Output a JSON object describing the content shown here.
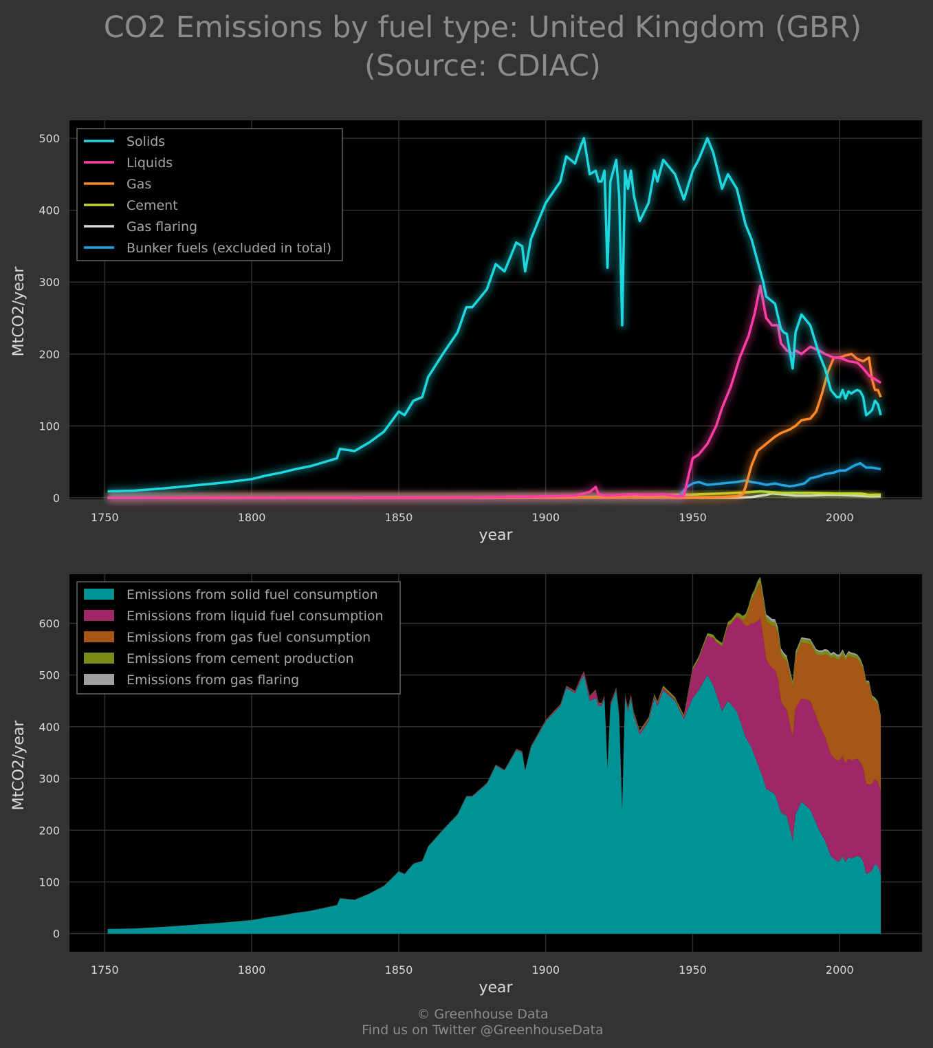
{
  "title": {
    "line1": "CO2 Emissions by fuel type: United Kingdom (GBR)",
    "line2": "(Source: CDIAC)"
  },
  "footer": {
    "line1": "© Greenhouse Data",
    "line2": "Find us on Twitter @GreenhouseData"
  },
  "colors": {
    "background": "#333333",
    "plot_bg": "#000000",
    "solids": "#1ed8e0",
    "liquids": "#ff3ea5",
    "gas": "#ff8a2a",
    "cement": "#c2d62a",
    "flaring": "#d9d9d9",
    "bunker": "#23a3e0",
    "area_solid": "#009294",
    "area_liquid": "#a02767",
    "area_gas": "#a65615",
    "area_cement": "#7c8a1a",
    "area_flaring": "#a0a0a0"
  },
  "chart_data": [
    {
      "type": "line",
      "xlabel": "year",
      "ylabel": "MtCO2/year",
      "xlim": [
        1738,
        2028
      ],
      "ylim": [
        -2,
        525
      ],
      "xticks": [
        1750,
        1800,
        1850,
        1900,
        1950,
        2000
      ],
      "yticks": [
        0,
        100,
        200,
        300,
        400,
        500
      ],
      "grid": true,
      "legend_position": "top-left",
      "series": [
        {
          "name": "Solids",
          "color_key": "solids",
          "points": [
            [
              1751,
              9
            ],
            [
              1760,
              10
            ],
            [
              1770,
              13
            ],
            [
              1780,
              17
            ],
            [
              1790,
              21
            ],
            [
              1800,
              26
            ],
            [
              1805,
              31
            ],
            [
              1810,
              35
            ],
            [
              1815,
              40
            ],
            [
              1820,
              44
            ],
            [
              1825,
              50
            ],
            [
              1829,
              55
            ],
            [
              1830,
              68
            ],
            [
              1835,
              65
            ],
            [
              1840,
              77
            ],
            [
              1845,
              92
            ],
            [
              1850,
              120
            ],
            [
              1852,
              115
            ],
            [
              1855,
              135
            ],
            [
              1858,
              140
            ],
            [
              1860,
              168
            ],
            [
              1865,
              200
            ],
            [
              1870,
              230
            ],
            [
              1873,
              265
            ],
            [
              1875,
              265
            ],
            [
              1880,
              290
            ],
            [
              1883,
              325
            ],
            [
              1886,
              315
            ],
            [
              1890,
              355
            ],
            [
              1892,
              350
            ],
            [
              1893,
              315
            ],
            [
              1895,
              360
            ],
            [
              1900,
              410
            ],
            [
              1905,
              440
            ],
            [
              1907,
              475
            ],
            [
              1910,
              465
            ],
            [
              1912,
              490
            ],
            [
              1913,
              500
            ],
            [
              1914,
              475
            ],
            [
              1915,
              450
            ],
            [
              1917,
              455
            ],
            [
              1918,
              440
            ],
            [
              1919,
              440
            ],
            [
              1920,
              455
            ],
            [
              1921,
              320
            ],
            [
              1922,
              440
            ],
            [
              1924,
              470
            ],
            [
              1925,
              420
            ],
            [
              1926,
              240
            ],
            [
              1927,
              455
            ],
            [
              1928,
              430
            ],
            [
              1929,
              455
            ],
            [
              1930,
              420
            ],
            [
              1932,
              385
            ],
            [
              1935,
              410
            ],
            [
              1937,
              455
            ],
            [
              1938,
              440
            ],
            [
              1940,
              470
            ],
            [
              1944,
              450
            ],
            [
              1947,
              415
            ],
            [
              1950,
              455
            ],
            [
              1952,
              470
            ],
            [
              1955,
              500
            ],
            [
              1957,
              480
            ],
            [
              1960,
              430
            ],
            [
              1962,
              450
            ],
            [
              1965,
              430
            ],
            [
              1968,
              380
            ],
            [
              1970,
              360
            ],
            [
              1972,
              330
            ],
            [
              1974,
              300
            ],
            [
              1975,
              280
            ],
            [
              1978,
              270
            ],
            [
              1980,
              235
            ],
            [
              1981,
              230
            ],
            [
              1982,
              228
            ],
            [
              1984,
              180
            ],
            [
              1985,
              230
            ],
            [
              1987,
              255
            ],
            [
              1990,
              240
            ],
            [
              1993,
              200
            ],
            [
              1995,
              180
            ],
            [
              1997,
              150
            ],
            [
              1999,
              140
            ],
            [
              2000,
              140
            ],
            [
              2001,
              150
            ],
            [
              2002,
              138
            ],
            [
              2003,
              148
            ],
            [
              2004,
              145
            ],
            [
              2005,
              148
            ],
            [
              2006,
              150
            ],
            [
              2007,
              148
            ],
            [
              2008,
              140
            ],
            [
              2009,
              115
            ],
            [
              2010,
              118
            ],
            [
              2011,
              122
            ],
            [
              2012,
              135
            ],
            [
              2013,
              130
            ],
            [
              2014,
              115
            ]
          ]
        },
        {
          "name": "Liquids",
          "color_key": "liquids",
          "points": [
            [
              1751,
              0
            ],
            [
              1870,
              0.5
            ],
            [
              1900,
              2
            ],
            [
              1910,
              3
            ],
            [
              1915,
              8
            ],
            [
              1917,
              15
            ],
            [
              1918,
              5
            ],
            [
              1920,
              3
            ],
            [
              1925,
              4
            ],
            [
              1930,
              5
            ],
            [
              1935,
              4
            ],
            [
              1940,
              5
            ],
            [
              1945,
              2
            ],
            [
              1947,
              3
            ],
            [
              1950,
              55
            ],
            [
              1952,
              60
            ],
            [
              1955,
              75
            ],
            [
              1958,
              100
            ],
            [
              1960,
              125
            ],
            [
              1963,
              155
            ],
            [
              1966,
              195
            ],
            [
              1969,
              225
            ],
            [
              1971,
              255
            ],
            [
              1973,
              295
            ],
            [
              1975,
              250
            ],
            [
              1977,
              240
            ],
            [
              1979,
              240
            ],
            [
              1980,
              215
            ],
            [
              1982,
              205
            ],
            [
              1984,
              200
            ],
            [
              1985,
              205
            ],
            [
              1987,
              200
            ],
            [
              1990,
              210
            ],
            [
              1993,
              205
            ],
            [
              1995,
              200
            ],
            [
              1998,
              195
            ],
            [
              2000,
              195
            ],
            [
              2003,
              190
            ],
            [
              2006,
              188
            ],
            [
              2008,
              180
            ],
            [
              2010,
              170
            ],
            [
              2012,
              165
            ],
            [
              2014,
              160
            ]
          ]
        },
        {
          "name": "Gas",
          "color_key": "gas",
          "points": [
            [
              1751,
              0
            ],
            [
              1950,
              0.5
            ],
            [
              1960,
              1
            ],
            [
              1965,
              2
            ],
            [
              1967,
              5
            ],
            [
              1968,
              15
            ],
            [
              1970,
              45
            ],
            [
              1972,
              65
            ],
            [
              1975,
              75
            ],
            [
              1978,
              85
            ],
            [
              1980,
              90
            ],
            [
              1983,
              95
            ],
            [
              1985,
              100
            ],
            [
              1987,
              108
            ],
            [
              1990,
              110
            ],
            [
              1992,
              120
            ],
            [
              1994,
              145
            ],
            [
              1996,
              175
            ],
            [
              1998,
              195
            ],
            [
              2000,
              195
            ],
            [
              2002,
              198
            ],
            [
              2004,
              200
            ],
            [
              2006,
              193
            ],
            [
              2008,
              190
            ],
            [
              2010,
              195
            ],
            [
              2011,
              165
            ],
            [
              2012,
              150
            ],
            [
              2013,
              150
            ],
            [
              2014,
              140
            ]
          ]
        },
        {
          "name": "Cement",
          "color_key": "cement",
          "points": [
            [
              1751,
              0
            ],
            [
              1870,
              0.2
            ],
            [
              1900,
              0.8
            ],
            [
              1920,
              1.5
            ],
            [
              1930,
              2.5
            ],
            [
              1940,
              4
            ],
            [
              1950,
              4.5
            ],
            [
              1960,
              6
            ],
            [
              1970,
              8
            ],
            [
              1973,
              9
            ],
            [
              1980,
              7
            ],
            [
              1990,
              7
            ],
            [
              2000,
              6
            ],
            [
              2007,
              6
            ],
            [
              2010,
              4
            ],
            [
              2014,
              4.5
            ]
          ]
        },
        {
          "name": "Gas flaring",
          "color_key": "flaring",
          "points": [
            [
              1751,
              0
            ],
            [
              1965,
              0
            ],
            [
              1970,
              1
            ],
            [
              1975,
              4
            ],
            [
              1977,
              6
            ],
            [
              1980,
              5
            ],
            [
              1985,
              3
            ],
            [
              1990,
              3
            ],
            [
              1995,
              4
            ],
            [
              2000,
              4
            ],
            [
              2005,
              3
            ],
            [
              2010,
              2
            ],
            [
              2014,
              2
            ]
          ]
        },
        {
          "name": "Bunker fuels (excluded in total)",
          "color_key": "bunker",
          "points": [
            [
              1751,
              0
            ],
            [
              1945,
              0.5
            ],
            [
              1948,
              15
            ],
            [
              1950,
              20
            ],
            [
              1952,
              22
            ],
            [
              1955,
              18
            ],
            [
              1960,
              20
            ],
            [
              1965,
              22
            ],
            [
              1968,
              24
            ],
            [
              1970,
              22
            ],
            [
              1973,
              20
            ],
            [
              1975,
              18
            ],
            [
              1978,
              20
            ],
            [
              1980,
              18
            ],
            [
              1983,
              16
            ],
            [
              1985,
              17
            ],
            [
              1988,
              20
            ],
            [
              1990,
              27
            ],
            [
              1993,
              30
            ],
            [
              1995,
              33
            ],
            [
              1998,
              35
            ],
            [
              2000,
              38
            ],
            [
              2002,
              38
            ],
            [
              2005,
              45
            ],
            [
              2007,
              48
            ],
            [
              2009,
              42
            ],
            [
              2011,
              42
            ],
            [
              2014,
              40
            ]
          ]
        }
      ]
    },
    {
      "type": "area",
      "stacked": true,
      "xlabel": "year",
      "ylabel": "MtCO2/year",
      "xlim": [
        1738,
        2028
      ],
      "ylim": [
        -35,
        695
      ],
      "xticks": [
        1750,
        1800,
        1850,
        1900,
        1950,
        2000
      ],
      "yticks": [
        0,
        100,
        200,
        300,
        400,
        500,
        600
      ],
      "grid": true,
      "legend_position": "top-left",
      "stack_order": [
        "Emissions from solid fuel consumption",
        "Emissions from liquid fuel consumption",
        "Emissions from gas fuel consumption",
        "Emissions from cement production",
        "Emissions from gas flaring"
      ],
      "source_series": [
        "Solids",
        "Liquids",
        "Gas",
        "Cement",
        "Gas flaring"
      ],
      "series_colors": [
        "area_solid",
        "area_liquid",
        "area_gas",
        "area_cement",
        "area_flaring"
      ]
    }
  ]
}
